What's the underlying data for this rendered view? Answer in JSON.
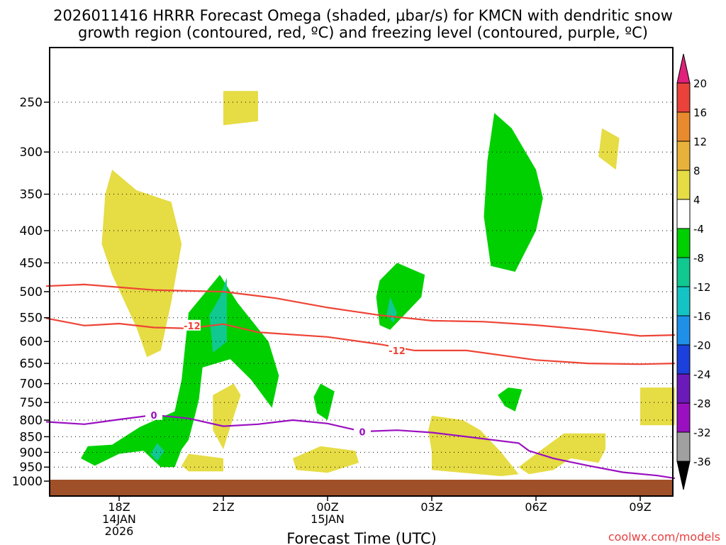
{
  "chart_data": {
    "type": "heatmap",
    "title_line1": "2026011416 HRRR Forecast Omega (shaded, μbar/s) for KMCN with dendritic snow",
    "title_line2": "growth region (contoured, red, ºC) and freezing level (contoured, purple, ºC)",
    "xlabel": "Forecast Time (UTC)",
    "watermark": "coolwx.com/models",
    "y_ticks": [
      {
        "v": 250,
        "label": "250"
      },
      {
        "v": 300,
        "label": "300"
      },
      {
        "v": 350,
        "label": "350"
      },
      {
        "v": 400,
        "label": "400"
      },
      {
        "v": 450,
        "label": "450"
      },
      {
        "v": 500,
        "label": "500"
      },
      {
        "v": 550,
        "label": "550"
      },
      {
        "v": 600,
        "label": "600"
      },
      {
        "v": 650,
        "label": "650"
      },
      {
        "v": 700,
        "label": "700"
      },
      {
        "v": 750,
        "label": "750"
      },
      {
        "v": 800,
        "label": "800"
      },
      {
        "v": 850,
        "label": "850"
      },
      {
        "v": 900,
        "label": "900"
      },
      {
        "v": 950,
        "label": "950"
      },
      {
        "v": 1000,
        "label": "1000"
      }
    ],
    "ylim": [
      200,
      1012
    ],
    "xlim": [
      15.9,
      34
    ],
    "x_ticks": [
      {
        "h": 18,
        "label": "18Z",
        "sub1": "14JAN",
        "sub2": "2026"
      },
      {
        "h": 21,
        "label": "21Z",
        "sub1": "",
        "sub2": ""
      },
      {
        "h": 24,
        "label": "00Z",
        "sub1": "15JAN",
        "sub2": ""
      },
      {
        "h": 27,
        "label": "03Z",
        "sub1": "",
        "sub2": ""
      },
      {
        "h": 30,
        "label": "06Z",
        "sub1": "",
        "sub2": ""
      },
      {
        "h": 33,
        "label": "09Z",
        "sub1": "",
        "sub2": ""
      }
    ],
    "colorbar": {
      "labels": [
        "20",
        "16",
        "12",
        "8",
        "4",
        "-4",
        "-8",
        "-12",
        "-16",
        "-20",
        "-24",
        "-28",
        "-32",
        "-36"
      ],
      "colors": {
        "c20": "#e0207a",
        "c16": "#e8423a",
        "c12": "#ea8a2e",
        "c8": "#e8b23a",
        "c4": "#e6dc44",
        "c_neutral": "#ffffff",
        "cm4": "#00d000",
        "cm8": "#10c890",
        "cm12": "#14c4c4",
        "cm16": "#1e90e8",
        "cm20": "#1c40dc",
        "cm24": "#6a1ab8",
        "cm28": "#9a10c0",
        "cm32": "#a0a0a0",
        "cm36": "#000000"
      }
    },
    "contours": {
      "upper_red_line": {
        "label": "",
        "color": "#ee4436",
        "points": [
          [
            15.9,
            490
          ],
          [
            17,
            487
          ],
          [
            19,
            497
          ],
          [
            21,
            500
          ],
          [
            22.5,
            512
          ],
          [
            24,
            530
          ],
          [
            25.5,
            545
          ],
          [
            27,
            556
          ],
          [
            28.5,
            558
          ],
          [
            30,
            565
          ],
          [
            31.5,
            575
          ],
          [
            33,
            588
          ],
          [
            34,
            586
          ]
        ]
      },
      "lower_red_line": {
        "label": "-12",
        "color": "#ee4436",
        "label_at": [
          26,
          620
        ],
        "points": [
          [
            15.9,
            551
          ],
          [
            17,
            566
          ],
          [
            18,
            562
          ],
          [
            19,
            570
          ],
          [
            20,
            572
          ],
          [
            21,
            563
          ],
          [
            22,
            580
          ],
          [
            24,
            590
          ],
          [
            25.5,
            606
          ],
          [
            26.5,
            620
          ],
          [
            28,
            620
          ],
          [
            30,
            642
          ],
          [
            31.5,
            650
          ],
          [
            33,
            652
          ],
          [
            34,
            650
          ]
        ]
      },
      "lower_red_label2": {
        "label": "-12",
        "at": [
          20.1,
          566
        ]
      },
      "freezing_line": {
        "label": "0",
        "color": "#9a10c0",
        "label_at": [
          25.0,
          835
        ],
        "label2_at": [
          19.0,
          785
        ],
        "points": [
          [
            15.9,
            805
          ],
          [
            17,
            812
          ],
          [
            18,
            798
          ],
          [
            19,
            785
          ],
          [
            20,
            795
          ],
          [
            21,
            818
          ],
          [
            22,
            812
          ],
          [
            23,
            800
          ],
          [
            24,
            810
          ],
          [
            25,
            834
          ],
          [
            26,
            830
          ],
          [
            27,
            837
          ],
          [
            28,
            850
          ],
          [
            29.5,
            870
          ],
          [
            29.8,
            895
          ],
          [
            30.5,
            920
          ],
          [
            31.5,
            945
          ],
          [
            32.5,
            968
          ],
          [
            33.5,
            980
          ],
          [
            34,
            990
          ]
        ]
      }
    },
    "shaded_regions": [
      {
        "value": "4",
        "points": [
          [
            21,
            240
          ],
          [
            22,
            240
          ],
          [
            22,
            268
          ],
          [
            21,
            272
          ]
        ]
      },
      {
        "value": "4",
        "points": [
          [
            17.8,
            320
          ],
          [
            18.5,
            345
          ],
          [
            19.5,
            360
          ],
          [
            19.8,
            420
          ],
          [
            19.5,
            520
          ],
          [
            19.2,
            620
          ],
          [
            18.8,
            635
          ],
          [
            18.5,
            570
          ],
          [
            17.8,
            470
          ],
          [
            17.5,
            420
          ],
          [
            17.6,
            350
          ]
        ]
      },
      {
        "value": "4",
        "points": [
          [
            21.3,
            700
          ],
          [
            21.5,
            730
          ],
          [
            21.2,
            820
          ],
          [
            21.0,
            890
          ],
          [
            20.7,
            830
          ],
          [
            20.7,
            730
          ]
        ]
      },
      {
        "value": "4",
        "points": [
          [
            20,
            905
          ],
          [
            21,
            920
          ],
          [
            21,
            965
          ],
          [
            20,
            965
          ],
          [
            19.8,
            945
          ]
        ]
      },
      {
        "value": "4",
        "points": [
          [
            23.8,
            880
          ],
          [
            24.8,
            895
          ],
          [
            24.9,
            935
          ],
          [
            24,
            970
          ],
          [
            23.1,
            960
          ],
          [
            23,
            920
          ]
        ]
      },
      {
        "value": "4",
        "points": [
          [
            27,
            787
          ],
          [
            27.9,
            800
          ],
          [
            28.4,
            830
          ],
          [
            29,
            900
          ],
          [
            29.5,
            975
          ],
          [
            29,
            982
          ],
          [
            27,
            960
          ],
          [
            27,
            900
          ],
          [
            26.9,
            830
          ]
        ]
      },
      {
        "value": "4",
        "points": [
          [
            30.8,
            840
          ],
          [
            32,
            840
          ],
          [
            32,
            890
          ],
          [
            31.8,
            935
          ],
          [
            31,
            920
          ],
          [
            30.5,
            960
          ],
          [
            29.8,
            975
          ],
          [
            29.5,
            950
          ],
          [
            30,
            905
          ]
        ]
      },
      {
        "value": "4",
        "points": [
          [
            33,
            710
          ],
          [
            34,
            710
          ],
          [
            34,
            815
          ],
          [
            33,
            815
          ]
        ]
      },
      {
        "value": "4",
        "points": [
          [
            31.9,
            275
          ],
          [
            32.4,
            285
          ],
          [
            32.3,
            320
          ],
          [
            31.8,
            305
          ]
        ]
      },
      {
        "value": "-4",
        "points": [
          [
            20.9,
            470
          ],
          [
            21.4,
            520
          ],
          [
            22.3,
            600
          ],
          [
            22.6,
            680
          ],
          [
            22.4,
            765
          ],
          [
            21.8,
            690
          ],
          [
            21.2,
            640
          ],
          [
            20.4,
            660
          ],
          [
            20.3,
            740
          ],
          [
            20.2,
            780
          ],
          [
            20,
            860
          ],
          [
            19.8,
            890
          ],
          [
            19.6,
            950
          ],
          [
            19.2,
            950
          ],
          [
            18.7,
            895
          ],
          [
            18,
            905
          ],
          [
            17.3,
            945
          ],
          [
            16.9,
            920
          ],
          [
            17.1,
            880
          ],
          [
            17.8,
            875
          ],
          [
            18.6,
            820
          ],
          [
            19.6,
            775
          ],
          [
            19.8,
            690
          ],
          [
            20,
            540
          ]
        ]
      },
      {
        "value": "-4",
        "points": [
          [
            23.8,
            700
          ],
          [
            24.2,
            720
          ],
          [
            24.1,
            760
          ],
          [
            24,
            800
          ],
          [
            23.7,
            780
          ],
          [
            23.6,
            735
          ]
        ]
      },
      {
        "value": "-4",
        "points": [
          [
            26,
            450
          ],
          [
            26.8,
            470
          ],
          [
            26.7,
            510
          ],
          [
            26.2,
            545
          ],
          [
            25.8,
            575
          ],
          [
            25.5,
            565
          ],
          [
            25.4,
            510
          ],
          [
            25.5,
            480
          ]
        ]
      },
      {
        "value": "-4",
        "points": [
          [
            28.8,
            260
          ],
          [
            29.3,
            275
          ],
          [
            30,
            320
          ],
          [
            30.2,
            355
          ],
          [
            30,
            400
          ],
          [
            29.4,
            465
          ],
          [
            28.7,
            455
          ],
          [
            28.5,
            380
          ],
          [
            28.6,
            310
          ]
        ]
      },
      {
        "value": "-4",
        "points": [
          [
            29.2,
            710
          ],
          [
            29.6,
            715
          ],
          [
            29.4,
            775
          ],
          [
            29.1,
            760
          ],
          [
            28.9,
            730
          ]
        ]
      },
      {
        "value": "-8",
        "points": [
          [
            21.1,
            475
          ],
          [
            21.1,
            600
          ],
          [
            20.7,
            625
          ],
          [
            20.6,
            545
          ],
          [
            20.9,
            510
          ]
        ]
      },
      {
        "value": "-8",
        "points": [
          [
            19.1,
            870
          ],
          [
            19.3,
            895
          ],
          [
            19.1,
            930
          ],
          [
            18.9,
            905
          ]
        ]
      },
      {
        "value": "-8",
        "points": [
          [
            25.8,
            510
          ],
          [
            26,
            540
          ],
          [
            25.9,
            560
          ],
          [
            25.7,
            545
          ]
        ]
      }
    ],
    "ground": {
      "label": "",
      "color": "#a05028",
      "top_p": 1000
    },
    "grid": true
  }
}
